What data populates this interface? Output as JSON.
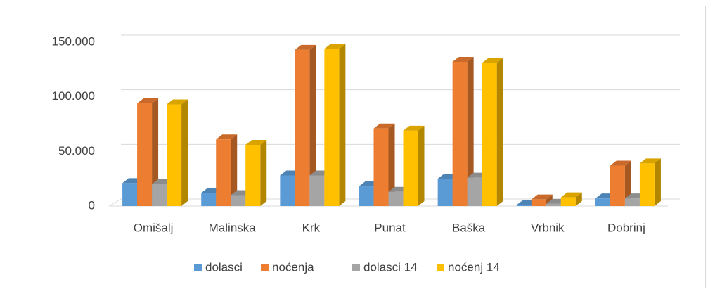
{
  "chart_data": {
    "type": "bar",
    "categories": [
      "Omišalj",
      "Malinska",
      "Krk",
      "Punat",
      "Baška",
      "Vrbnik",
      "Dobrinj"
    ],
    "series": [
      {
        "name": "dolasci",
        "color": "#5b9bd5",
        "values": [
          21000,
          12000,
          28000,
          18000,
          25000,
          1000,
          7000
        ]
      },
      {
        "name": "noćenja",
        "color": "#ed7d31",
        "values": [
          94000,
          61000,
          143000,
          71000,
          132000,
          6000,
          37000
        ]
      },
      {
        "name": "dolasci 14",
        "color": "#a5a5a5",
        "values": [
          20000,
          10000,
          28000,
          13000,
          26000,
          2000,
          7000
        ]
      },
      {
        "name": "noćenj 14",
        "color": "#ffc000",
        "values": [
          93000,
          56000,
          144000,
          69000,
          131000,
          8000,
          39000
        ]
      }
    ],
    "ylim": [
      0,
      150000
    ],
    "yticks": [
      0,
      {
        "value": 50000,
        "label": "50.000"
      },
      {
        "value": 100000,
        "label": "100.000"
      },
      {
        "value": 150000,
        "label": "150.000"
      }
    ],
    "grid": true,
    "legend": "bottom"
  }
}
